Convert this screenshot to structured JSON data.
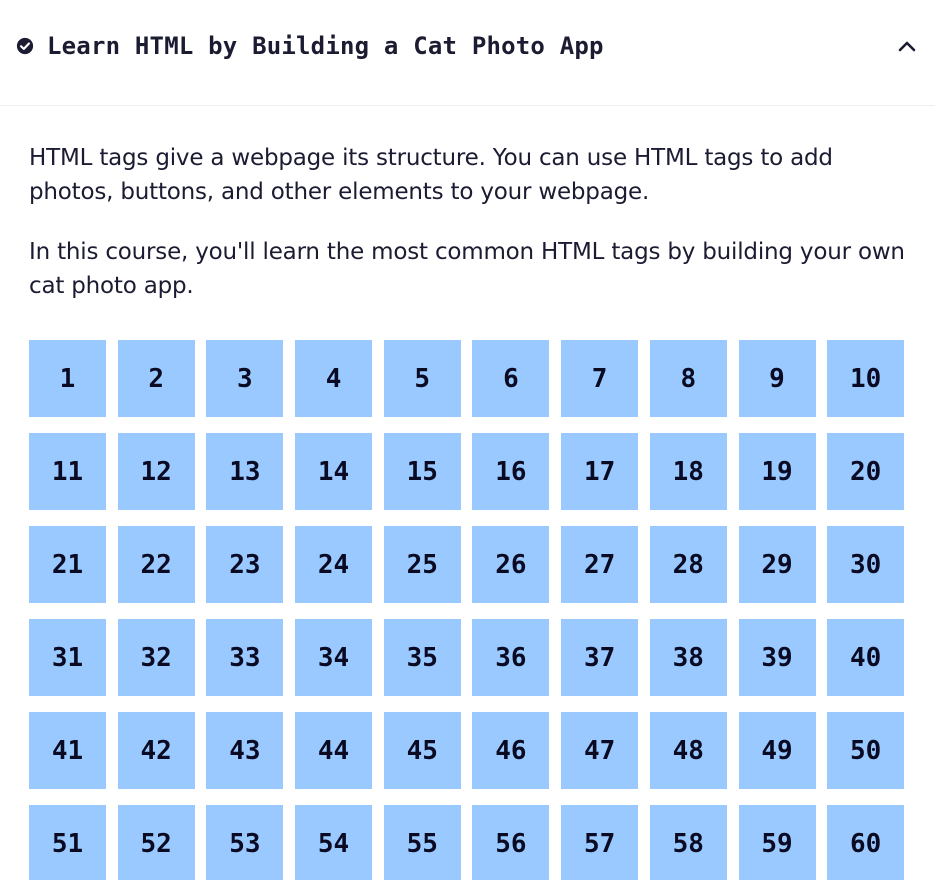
{
  "header": {
    "title": "Learn HTML by Building a Cat Photo App",
    "status_icon": "check-circle-icon",
    "toggle_icon": "chevron-up-icon"
  },
  "description": {
    "paragraph_1": "HTML tags give a webpage its structure. You can use HTML tags to add photos, buttons, and other elements to your webpage.",
    "paragraph_2": "In this course, you'll learn the most common HTML tags by building your own cat photo app."
  },
  "steps": [
    "1",
    "2",
    "3",
    "4",
    "5",
    "6",
    "7",
    "8",
    "9",
    "10",
    "11",
    "12",
    "13",
    "14",
    "15",
    "16",
    "17",
    "18",
    "19",
    "20",
    "21",
    "22",
    "23",
    "24",
    "25",
    "26",
    "27",
    "28",
    "29",
    "30",
    "31",
    "32",
    "33",
    "34",
    "35",
    "36",
    "37",
    "38",
    "39",
    "40",
    "41",
    "42",
    "43",
    "44",
    "45",
    "46",
    "47",
    "48",
    "49",
    "50",
    "51",
    "52",
    "53",
    "54",
    "55",
    "56",
    "57",
    "58",
    "59",
    "60"
  ],
  "colors": {
    "step_background": "#99c9ff",
    "text": "#1b1b32",
    "step_text": "#0a0a23"
  }
}
